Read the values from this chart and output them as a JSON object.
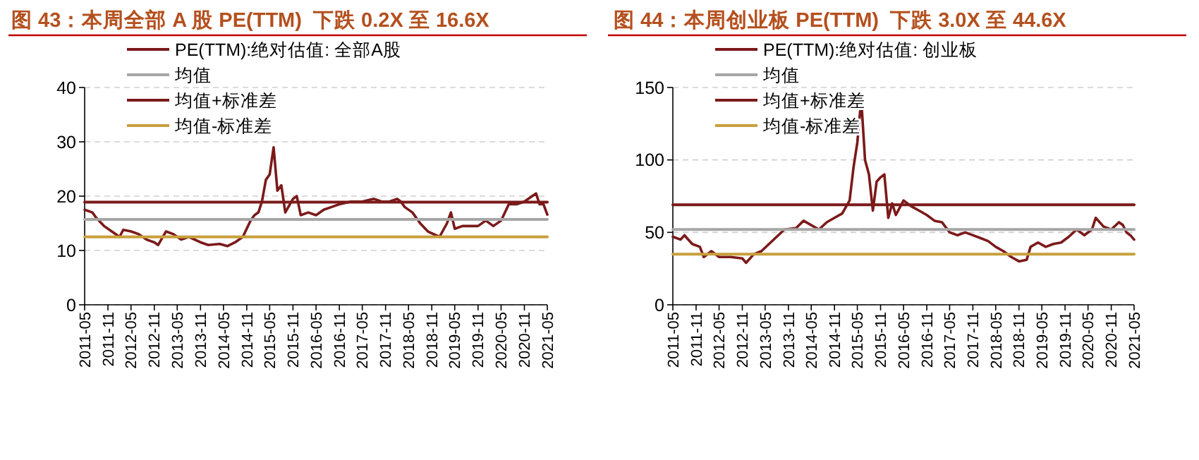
{
  "chart_data": [
    {
      "type": "line",
      "title": "图 43：本周全部 A 股 PE(TTM)  下跌 0.2X 至 16.6X",
      "grid": "y",
      "legend": "top",
      "ylim": [
        0,
        40
      ],
      "yticks": [
        0,
        10,
        20,
        30,
        40
      ],
      "xlim": [
        "2011-05",
        "2021-05"
      ],
      "xticks": [
        "2011-05",
        "2011-11",
        "2012-05",
        "2012-11",
        "2013-05",
        "2013-11",
        "2014-05",
        "2014-11",
        "2015-05",
        "2015-11",
        "2016-05",
        "2016-11",
        "2017-05",
        "2017-11",
        "2018-05",
        "2018-11",
        "2019-05",
        "2019-11",
        "2020-05",
        "2020-11",
        "2021-05"
      ],
      "series": [
        {
          "name": "PE(TTM):绝对估值: 全部A股",
          "color": "#7b1a1a",
          "x": [
            "2011-05",
            "2011-07",
            "2011-08",
            "2011-10",
            "2011-12",
            "2012-02",
            "2012-03",
            "2012-05",
            "2012-07",
            "2012-09",
            "2012-11",
            "2012-12",
            "2013-02",
            "2013-04",
            "2013-06",
            "2013-08",
            "2013-11",
            "2014-01",
            "2014-04",
            "2014-06",
            "2014-08",
            "2014-10",
            "2014-12",
            "2015-01",
            "2015-02",
            "2015-03",
            "2015-04",
            "2015-05",
            "2015-06",
            "2015-07",
            "2015-08",
            "2015-09",
            "2015-11",
            "2015-12",
            "2016-01",
            "2016-03",
            "2016-05",
            "2016-07",
            "2016-09",
            "2016-11",
            "2017-02",
            "2017-05",
            "2017-08",
            "2017-10",
            "2017-12",
            "2018-02",
            "2018-03",
            "2018-04",
            "2018-06",
            "2018-08",
            "2018-10",
            "2019-01",
            "2019-03",
            "2019-04",
            "2019-05",
            "2019-07",
            "2019-09",
            "2019-11",
            "2020-01",
            "2020-03",
            "2020-05",
            "2020-07",
            "2020-09",
            "2020-11",
            "2021-01",
            "2021-02",
            "2021-03",
            "2021-04",
            "2021-05"
          ],
          "values": [
            17.5,
            17,
            16,
            14.5,
            13.5,
            12.5,
            13.8,
            13.5,
            13,
            12,
            11.5,
            11,
            13.5,
            13,
            12,
            12.5,
            11.5,
            11,
            11.2,
            10.8,
            11.5,
            12.5,
            15.5,
            16.5,
            17,
            19,
            23,
            24,
            29,
            21,
            22,
            17,
            19.5,
            20,
            16.5,
            17,
            16.5,
            17.5,
            18,
            18.5,
            19,
            19,
            19.5,
            19,
            19,
            19.5,
            19,
            18,
            17,
            15,
            13.5,
            12.5,
            15,
            17,
            14,
            14.5,
            14.5,
            14.5,
            15.5,
            14.5,
            15.5,
            18.5,
            18.5,
            19,
            20,
            20.5,
            18.5,
            18.5,
            16.6
          ]
        },
        {
          "name": "均值",
          "color": "#a6a6a6",
          "x": [
            "2011-05",
            "2021-05"
          ],
          "values": [
            15.7,
            15.7
          ]
        },
        {
          "name": "均值+标准差",
          "color": "#7b1a1a",
          "x": [
            "2011-05",
            "2021-05"
          ],
          "values": [
            18.9,
            18.9
          ]
        },
        {
          "name": "均值-标准差",
          "color": "#c8a03c",
          "x": [
            "2011-05",
            "2021-05"
          ],
          "values": [
            12.5,
            12.5
          ]
        }
      ]
    },
    {
      "type": "line",
      "title": "图 44：本周创业板 PE(TTM)  下跌 3.0X 至 44.6X",
      "grid": "y",
      "legend": "top",
      "ylim": [
        0,
        150
      ],
      "yticks": [
        0,
        50,
        100,
        150
      ],
      "xlim": [
        "2011-05",
        "2021-05"
      ],
      "xticks": [
        "2011-05",
        "2011-11",
        "2012-05",
        "2012-11",
        "2013-05",
        "2013-11",
        "2014-05",
        "2014-11",
        "2015-05",
        "2015-11",
        "2016-05",
        "2016-11",
        "2017-05",
        "2017-11",
        "2018-05",
        "2018-11",
        "2019-05",
        "2019-11",
        "2020-05",
        "2020-11",
        "2021-05"
      ],
      "series": [
        {
          "name": "PE(TTM):绝对估值: 创业板",
          "color": "#7b1a1a",
          "x": [
            "2011-05",
            "2011-07",
            "2011-08",
            "2011-10",
            "2011-12",
            "2012-01",
            "2012-03",
            "2012-05",
            "2012-08",
            "2012-11",
            "2012-12",
            "2013-02",
            "2013-04",
            "2013-06",
            "2013-08",
            "2013-10",
            "2014-01",
            "2014-03",
            "2014-05",
            "2014-07",
            "2014-09",
            "2014-11",
            "2015-01",
            "2015-03",
            "2015-04",
            "2015-05",
            "2015-06",
            "2015-07",
            "2015-08",
            "2015-09",
            "2015-10",
            "2015-11",
            "2015-12",
            "2016-01",
            "2016-02",
            "2016-03",
            "2016-05",
            "2016-07",
            "2016-09",
            "2016-11",
            "2017-01",
            "2017-03",
            "2017-05",
            "2017-07",
            "2017-09",
            "2017-11",
            "2018-01",
            "2018-03",
            "2018-05",
            "2018-07",
            "2018-09",
            "2018-11",
            "2019-01",
            "2019-02",
            "2019-04",
            "2019-06",
            "2019-08",
            "2019-10",
            "2019-12",
            "2020-02",
            "2020-04",
            "2020-06",
            "2020-07",
            "2020-09",
            "2020-11",
            "2021-01",
            "2021-02",
            "2021-03",
            "2021-04",
            "2021-05"
          ],
          "values": [
            47,
            45,
            48,
            42,
            40,
            33,
            37,
            33,
            33,
            32,
            29,
            35,
            37,
            42,
            47,
            52,
            53,
            58,
            55,
            52,
            57,
            60,
            63,
            72,
            95,
            112,
            142,
            100,
            90,
            65,
            85,
            88,
            90,
            60,
            70,
            62,
            72,
            68,
            65,
            62,
            58,
            57,
            50,
            48,
            50,
            48,
            46,
            44,
            40,
            37,
            33,
            30,
            31,
            40,
            43,
            40,
            42,
            43,
            47,
            52,
            48,
            52,
            60,
            54,
            52,
            57,
            55,
            50,
            48,
            45
          ]
        },
        {
          "name": "均值",
          "color": "#a6a6a6",
          "x": [
            "2011-05",
            "2021-05"
          ],
          "values": [
            52,
            52
          ]
        },
        {
          "name": "均值+标准差",
          "color": "#7b1a1a",
          "x": [
            "2011-05",
            "2021-05"
          ],
          "values": [
            69,
            69
          ]
        },
        {
          "name": "均值-标准差",
          "color": "#c8a03c",
          "x": [
            "2011-05",
            "2021-05"
          ],
          "values": [
            35,
            35
          ]
        }
      ]
    }
  ]
}
